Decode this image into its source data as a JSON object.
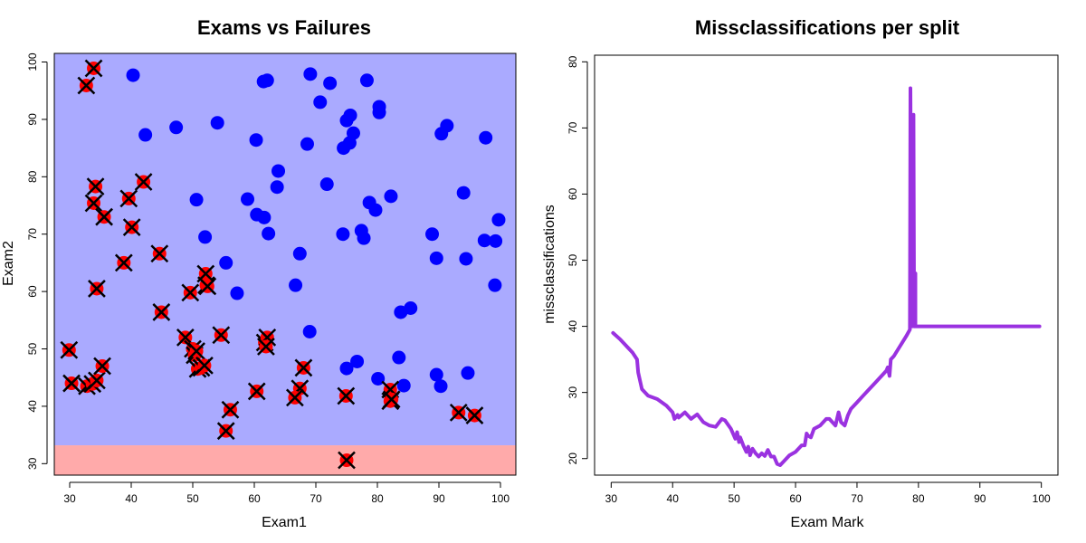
{
  "chart_data": [
    {
      "type": "scatter",
      "title": "Exams vs Failures",
      "xlabel": "Exam1",
      "ylabel": "Exam2",
      "xlim": [
        27.5,
        102.5
      ],
      "ylim": [
        28,
        101.5
      ],
      "xticks": [
        30,
        40,
        50,
        60,
        70,
        80,
        90,
        100
      ],
      "yticks": [
        30,
        40,
        50,
        60,
        70,
        80,
        90,
        100
      ],
      "regions": [
        {
          "name": "predicted-fail",
          "y_from": 28,
          "y_to": 33.2,
          "color": "#ffaaaa"
        },
        {
          "name": "predicted-pass",
          "y_from": 33.2,
          "y_to": 101.5,
          "color": "#aaaaff"
        }
      ],
      "series": [
        {
          "name": "pass",
          "color": "#0000ff",
          "marker": "circle",
          "points": [
            [
              40.3,
              97.7
            ],
            [
              42.3,
              87.3
            ],
            [
              47.3,
              88.6
            ],
            [
              54.0,
              89.4
            ],
            [
              50.6,
              76.0
            ],
            [
              52.0,
              69.5
            ],
            [
              55.4,
              65.0
            ],
            [
              57.2,
              59.7
            ],
            [
              58.9,
              76.1
            ],
            [
              60.4,
              73.4
            ],
            [
              61.6,
              72.9
            ],
            [
              62.3,
              70.1
            ],
            [
              60.3,
              86.4
            ],
            [
              61.5,
              96.6
            ],
            [
              62.1,
              96.8
            ],
            [
              63.9,
              81.0
            ],
            [
              63.7,
              78.2
            ],
            [
              67.4,
              66.6
            ],
            [
              66.7,
              61.1
            ],
            [
              68.6,
              85.7
            ],
            [
              69.1,
              97.9
            ],
            [
              70.7,
              93.0
            ],
            [
              71.8,
              78.7
            ],
            [
              72.3,
              96.3
            ],
            [
              69.0,
              53.0
            ],
            [
              74.4,
              70.0
            ],
            [
              74.5,
              85.0
            ],
            [
              75.0,
              89.8
            ],
            [
              75.5,
              85.9
            ],
            [
              75.6,
              90.7
            ],
            [
              76.1,
              87.6
            ],
            [
              77.4,
              70.6
            ],
            [
              77.8,
              69.3
            ],
            [
              78.3,
              96.8
            ],
            [
              78.7,
              75.5
            ],
            [
              79.7,
              74.2
            ],
            [
              80.3,
              92.2
            ],
            [
              80.3,
              91.2
            ],
            [
              82.2,
              76.6
            ],
            [
              75.0,
              46.6
            ],
            [
              76.7,
              47.8
            ],
            [
              80.1,
              44.8
            ],
            [
              83.5,
              48.5
            ],
            [
              83.8,
              56.4
            ],
            [
              85.4,
              57.1
            ],
            [
              84.3,
              43.6
            ],
            [
              88.9,
              70.0
            ],
            [
              89.6,
              65.8
            ],
            [
              90.4,
              87.5
            ],
            [
              91.3,
              88.9
            ],
            [
              94.0,
              77.2
            ],
            [
              94.4,
              65.7
            ],
            [
              97.4,
              68.9
            ],
            [
              97.6,
              86.8
            ],
            [
              99.2,
              68.8
            ],
            [
              99.7,
              72.5
            ],
            [
              99.1,
              61.1
            ],
            [
              89.6,
              45.5
            ],
            [
              90.3,
              43.5
            ],
            [
              94.7,
              45.8
            ]
          ]
        },
        {
          "name": "fail",
          "color": "#ff0000",
          "marker": "circle-x",
          "points": [
            [
              33.9,
              98.9
            ],
            [
              32.7,
              95.9
            ],
            [
              34.2,
              78.3
            ],
            [
              33.9,
              75.4
            ],
            [
              35.6,
              73.0
            ],
            [
              39.6,
              76.2
            ],
            [
              42.0,
              79.1
            ],
            [
              40.1,
              71.2
            ],
            [
              34.4,
              60.5
            ],
            [
              38.8,
              65.0
            ],
            [
              44.6,
              66.6
            ],
            [
              44.9,
              56.4
            ],
            [
              52.1,
              63.1
            ],
            [
              52.2,
              61.1
            ],
            [
              52.4,
              60.9
            ],
            [
              49.6,
              59.8
            ],
            [
              48.8,
              52.0
            ],
            [
              50.0,
              50.0
            ],
            [
              50.3,
              48.9
            ],
            [
              50.6,
              49.6
            ],
            [
              50.8,
              46.5
            ],
            [
              51.4,
              46.7
            ],
            [
              51.9,
              47.1
            ],
            [
              54.6,
              52.4
            ],
            [
              61.7,
              51.1
            ],
            [
              62.1,
              52.0
            ],
            [
              61.9,
              50.4
            ],
            [
              60.4,
              42.6
            ],
            [
              56.1,
              39.4
            ],
            [
              55.4,
              35.7
            ],
            [
              68.0,
              46.7
            ],
            [
              67.4,
              43.1
            ],
            [
              66.6,
              41.5
            ],
            [
              29.9,
              49.8
            ],
            [
              30.3,
              44.0
            ],
            [
              32.8,
              43.5
            ],
            [
              33.7,
              43.9
            ],
            [
              34.4,
              44.5
            ],
            [
              35.3,
              47.0
            ],
            [
              74.9,
              41.8
            ],
            [
              82.1,
              42.9
            ],
            [
              82.1,
              40.9
            ],
            [
              82.3,
              41.2
            ],
            [
              93.2,
              38.9
            ],
            [
              95.8,
              38.4
            ],
            [
              75.0,
              30.6
            ]
          ]
        }
      ]
    },
    {
      "type": "line",
      "title": "Missclassifications per split",
      "xlabel": "Exam Mark",
      "ylabel": "missclassifications",
      "xlim": [
        27.3,
        102.7
      ],
      "ylim": [
        17.5,
        81.0
      ],
      "xticks": [
        30,
        40,
        50,
        60,
        70,
        80,
        90,
        100
      ],
      "yticks": [
        20,
        30,
        40,
        50,
        60,
        70,
        80
      ],
      "series": [
        {
          "name": "missclassifications",
          "color": "#9a32e0",
          "x": [
            30.3,
            31.5,
            32.5,
            33.5,
            34.2,
            34.4,
            35.0,
            36.0,
            37.5,
            39.0,
            40.0,
            40.3,
            40.8,
            41.0,
            42.0,
            43.0,
            44.0,
            45.0,
            46.0,
            47.0,
            48.0,
            48.5,
            49.5,
            50.2,
            50.5,
            50.8,
            51.0,
            51.5,
            52.0,
            52.3,
            52.6,
            53.0,
            53.5,
            54.0,
            54.5,
            55.0,
            55.5,
            56.0,
            56.5,
            57.0,
            57.5,
            58.0,
            59.0,
            60.0,
            61.0,
            61.5,
            61.8,
            62.0,
            62.5,
            63.0,
            64.0,
            65.0,
            65.5,
            66.5,
            67.0,
            67.4,
            68.0,
            68.5,
            69.0,
            70.0,
            71.0,
            72.0,
            73.0,
            74.0,
            74.8,
            75.0,
            75.3,
            75.5,
            76.0,
            77.0,
            78.0,
            78.6,
            78.7,
            78.8,
            79.0,
            79.0,
            79.2,
            79.3,
            79.5,
            79.5,
            80.0,
            85.0,
            90.0,
            95.0,
            99.7
          ],
          "y": [
            39,
            38,
            37,
            36,
            35,
            33,
            30.5,
            29.5,
            29,
            28,
            27,
            26,
            26.6,
            26.2,
            27,
            26,
            26.7,
            25.5,
            25,
            24.8,
            26,
            25.8,
            24.5,
            23,
            24,
            22.5,
            23.2,
            22,
            21,
            21.8,
            20.5,
            21.5,
            20.8,
            20.3,
            20.8,
            20.4,
            21.3,
            20.3,
            20.3,
            19.2,
            19,
            19.5,
            20.5,
            21,
            22,
            22,
            23.8,
            23.5,
            23.2,
            24.5,
            25,
            26,
            26,
            25,
            27,
            25.5,
            25,
            26.5,
            27.5,
            28.5,
            29.5,
            30.5,
            31.5,
            32.5,
            33.3,
            33.8,
            32.5,
            35,
            35.5,
            37,
            38.5,
            39.5,
            76,
            58,
            40,
            48,
            72,
            40,
            48,
            40,
            40,
            40,
            40,
            40,
            40
          ]
        }
      ]
    }
  ]
}
